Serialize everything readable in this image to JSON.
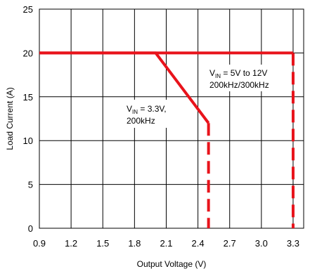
{
  "chart_data": {
    "type": "line",
    "title": "",
    "xlabel": "Output Voltage (V)",
    "ylabel": "Load Current (A)",
    "xlim": [
      0.9,
      3.4
    ],
    "ylim": [
      0,
      25
    ],
    "x_ticks": [
      "0.9",
      "1.2",
      "1.5",
      "1.8",
      "2.1",
      "2.4",
      "2.7",
      "3.0",
      "3.3"
    ],
    "y_ticks": [
      "0",
      "5",
      "10",
      "15",
      "20",
      "25"
    ],
    "grid": true,
    "legend": "none",
    "series": [
      {
        "name": "",
        "color": "#e8131b",
        "style": "solid then dashed",
        "points": [
          [
            0.9,
            20
          ],
          [
            3.3,
            20
          ],
          [
            3.3,
            0
          ]
        ]
      },
      {
        "name": "",
        "color": "#e8131b",
        "style": "solid then dashed",
        "points": [
          [
            0.9,
            20
          ],
          [
            2.0,
            20
          ],
          [
            2.5,
            12
          ],
          [
            2.5,
            0
          ]
        ]
      }
    ],
    "annotations": [
      {
        "prefix": "V",
        "sub": "IN",
        "line1_rest": " = 5V to 12V",
        "line2": "200kHz/300kHz"
      },
      {
        "prefix": "V",
        "sub": "IN",
        "line1_rest": " = 3.3V,",
        "line2": "200kHz"
      }
    ]
  }
}
